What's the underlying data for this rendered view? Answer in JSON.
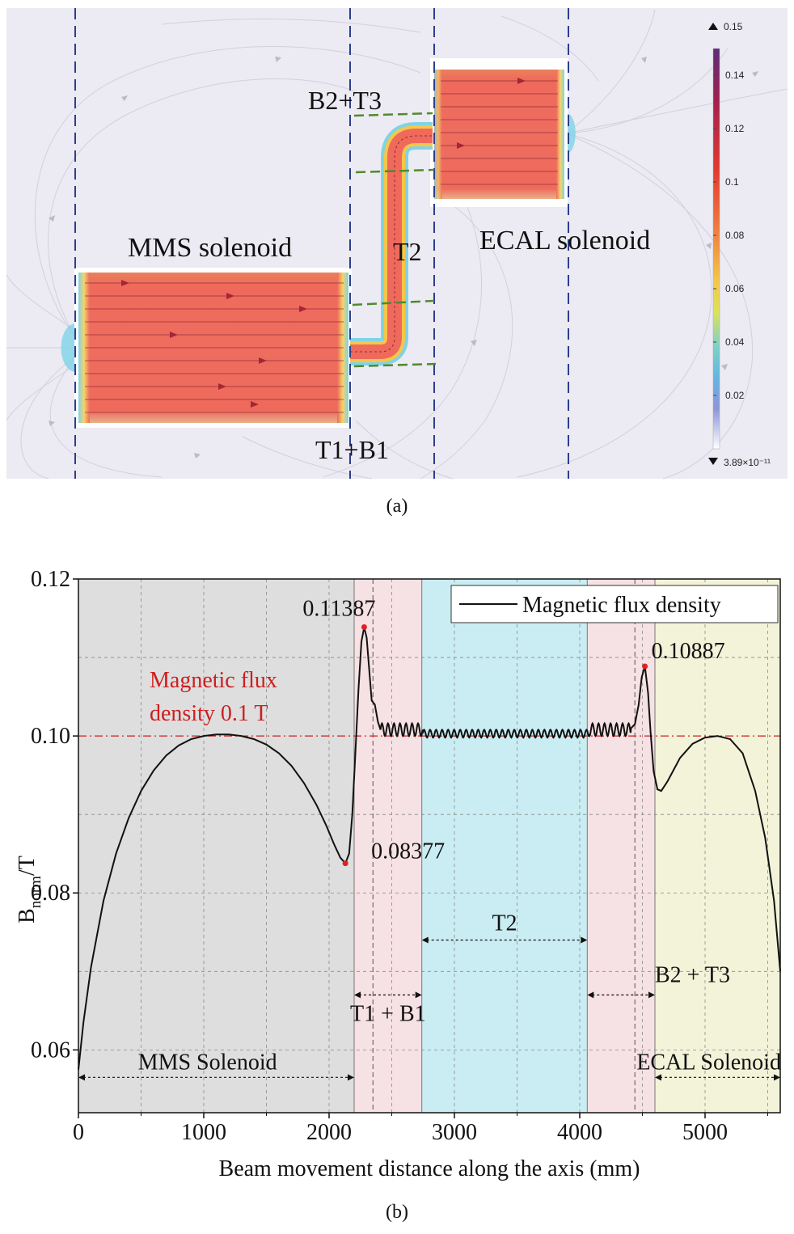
{
  "panel_a": {
    "caption": "(a)",
    "labels": {
      "mms": "MMS solenoid",
      "ecal": "ECAL solenoid",
      "b2t3": "B2+T3",
      "t2": "T2",
      "t1b1": "T1+B1"
    },
    "colorbar": {
      "max_label": "0.15",
      "min_label": "3.89×10⁻¹¹",
      "ticks": [
        "0.14",
        "0.12",
        "0.1",
        "0.08",
        "0.06",
        "0.04",
        "0.02"
      ],
      "tick_values": [
        0.14,
        0.12,
        0.1,
        0.08,
        0.06,
        0.04,
        0.02
      ],
      "colors": [
        "#5b2d7a",
        "#a3204f",
        "#e2392f",
        "#f07b3f",
        "#f5c64a",
        "#d9e35a",
        "#7fd3c4",
        "#62b7e3",
        "#8c95d8",
        "#d9d2ea",
        "#ffffff"
      ]
    }
  },
  "chart_data": {
    "type": "line",
    "caption": "(b)",
    "xlabel": "Beam movement distance along the axis (mm)",
    "ylabel_main": "B",
    "ylabel_sub": "norm",
    "ylabel_tail": "/T",
    "xlim": [
      0,
      5600
    ],
    "ylim": [
      0.052,
      0.12
    ],
    "xticks": [
      0,
      1000,
      2000,
      3000,
      4000,
      5000
    ],
    "xtick_labels": [
      "0",
      "1000",
      "2000",
      "3000",
      "4000",
      "5000"
    ],
    "yticks": [
      0.06,
      0.08,
      0.1,
      0.12
    ],
    "ytick_labels": [
      "0.06",
      "0.08",
      "0.10",
      "0.12"
    ],
    "legend": "Magnetic flux density",
    "reference_line": {
      "y": 0.1,
      "label_line1": "Magnetic flux",
      "label_line2": "density 0.1 T",
      "color": "#cc1f1f"
    },
    "regions": [
      {
        "name": "MMS Solenoid",
        "x0": 0,
        "x1": 2200,
        "color": "#dedede"
      },
      {
        "name": "T1 + B1",
        "x0": 2200,
        "x1": 2740,
        "color": "#f6e1e4"
      },
      {
        "name": "T2",
        "x0": 2740,
        "x1": 4060,
        "color": "#c9edf2"
      },
      {
        "name": "B2 + T3",
        "x0": 4060,
        "x1": 4600,
        "color": "#f6e1e4"
      },
      {
        "name": "ECAL Solenoid",
        "x0": 4600,
        "x1": 5600,
        "color": "#f2f3d8"
      }
    ],
    "annotations": [
      {
        "label": "0.11387",
        "x": 2280,
        "y": 0.11387
      },
      {
        "label": "0.08377",
        "x": 2130,
        "y": 0.08377
      },
      {
        "label": "0.10887",
        "x": 4520,
        "y": 0.10887
      }
    ],
    "series": [
      {
        "name": "Magnetic flux density",
        "points": [
          [
            0,
            0.0575
          ],
          [
            40,
            0.0635
          ],
          [
            100,
            0.0705
          ],
          [
            200,
            0.079
          ],
          [
            300,
            0.085
          ],
          [
            400,
            0.0895
          ],
          [
            500,
            0.093
          ],
          [
            600,
            0.0956
          ],
          [
            700,
            0.0975
          ],
          [
            800,
            0.0988
          ],
          [
            900,
            0.0996
          ],
          [
            1000,
            0.1
          ],
          [
            1100,
            0.1002
          ],
          [
            1200,
            0.1002
          ],
          [
            1300,
            0.1
          ],
          [
            1400,
            0.0996
          ],
          [
            1500,
            0.0989
          ],
          [
            1600,
            0.0978
          ],
          [
            1700,
            0.0962
          ],
          [
            1800,
            0.094
          ],
          [
            1900,
            0.0912
          ],
          [
            1980,
            0.0885
          ],
          [
            2040,
            0.0862
          ],
          [
            2090,
            0.0845
          ],
          [
            2130,
            0.08377
          ],
          [
            2160,
            0.085
          ],
          [
            2185,
            0.09
          ],
          [
            2210,
            0.098
          ],
          [
            2235,
            0.106
          ],
          [
            2258,
            0.112
          ],
          [
            2280,
            0.11387
          ],
          [
            2300,
            0.1125
          ],
          [
            2320,
            0.1085
          ],
          [
            2340,
            0.1045
          ],
          [
            2365,
            0.104
          ],
          [
            2390,
            0.1018
          ],
          [
            2410,
            0.1008
          ],
          [
            4410,
            0.101
          ],
          [
            4440,
            0.1015
          ],
          [
            4470,
            0.104
          ],
          [
            4495,
            0.1075
          ],
          [
            4520,
            0.10887
          ],
          [
            4545,
            0.1055
          ],
          [
            4565,
            0.1005
          ],
          [
            4590,
            0.0955
          ],
          [
            4620,
            0.0932
          ],
          [
            4650,
            0.093
          ],
          [
            4700,
            0.0942
          ],
          [
            4800,
            0.0972
          ],
          [
            4900,
            0.099
          ],
          [
            5000,
            0.0998
          ],
          [
            5100,
            0.1
          ],
          [
            5200,
            0.0996
          ],
          [
            5300,
            0.0978
          ],
          [
            5400,
            0.093
          ],
          [
            5480,
            0.087
          ],
          [
            5550,
            0.079
          ],
          [
            5600,
            0.07
          ]
        ],
        "ripple": {
          "x0": 2410,
          "x1": 4410,
          "mean": 0.1006,
          "period": 48,
          "amplitude_start": 0.0008,
          "amplitude_mid": 0.0005
        }
      }
    ]
  }
}
